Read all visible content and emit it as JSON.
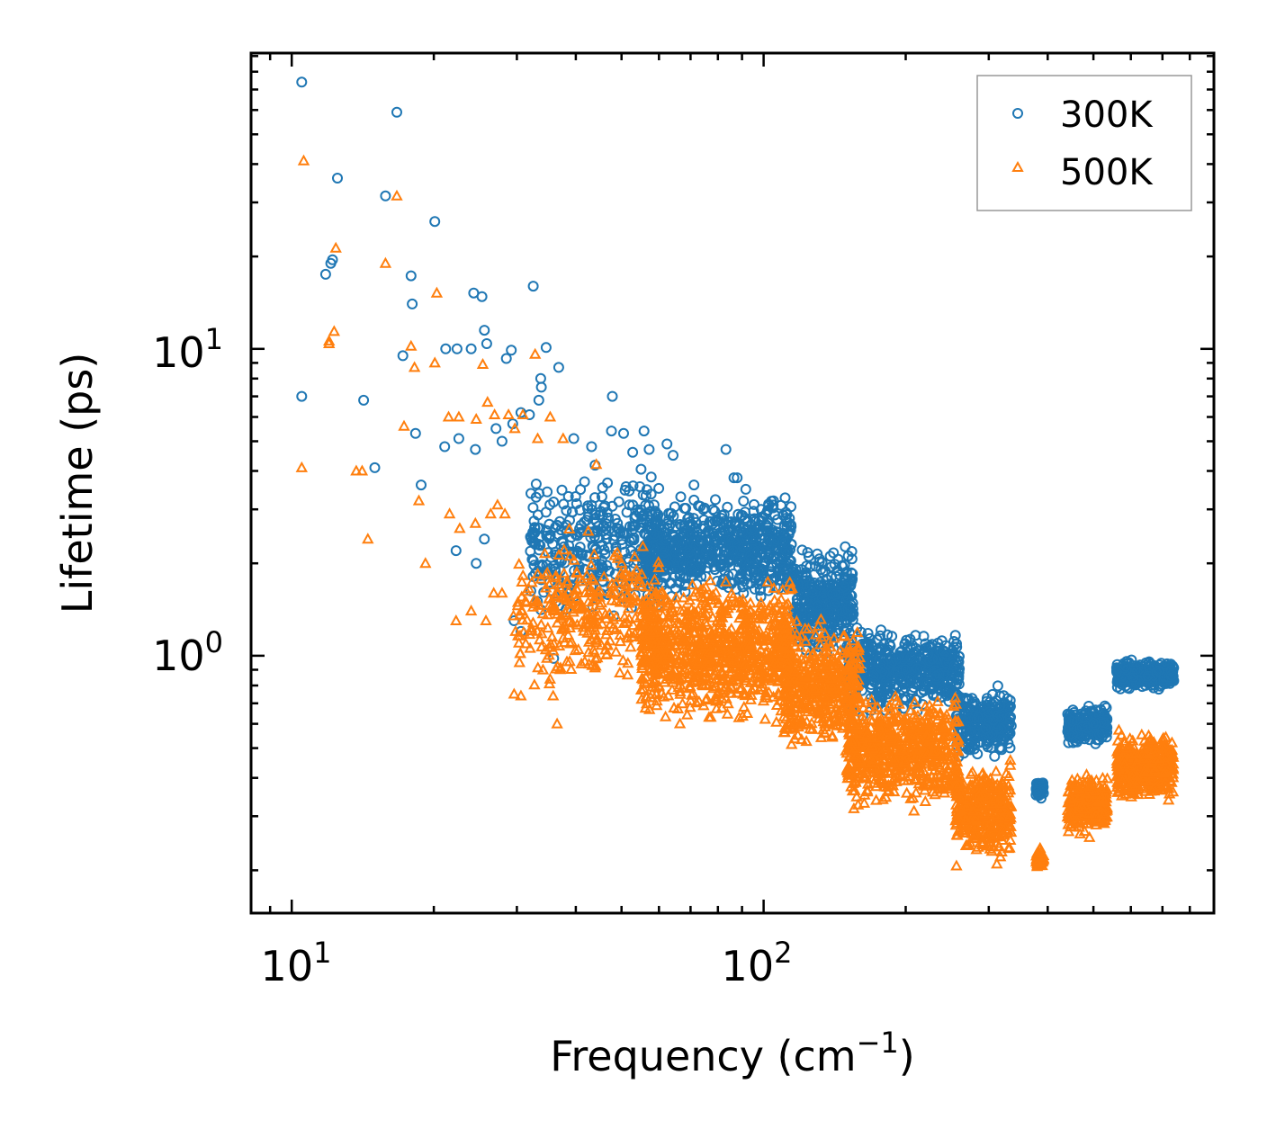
{
  "chart_data": {
    "type": "scatter",
    "title": "",
    "xlabel": "Frequency (cm",
    "xlabel_sup": "−1",
    "xlabel_close": ")",
    "ylabel": "Lifetime (ps)",
    "xscale": "log",
    "yscale": "log",
    "xlim": [
      8.2,
      900
    ],
    "ylim": [
      0.145,
      92
    ],
    "x_ticks": [
      {
        "base": "10",
        "exp": "1"
      },
      {
        "base": "10",
        "exp": "2"
      }
    ],
    "y_ticks": [
      {
        "base": "10",
        "exp": "0"
      },
      {
        "base": "10",
        "exp": "1"
      }
    ],
    "legend_position": "top-right",
    "series": [
      {
        "name": "300K",
        "color": "#1f77b4",
        "marker": "circle",
        "outliers": [
          [
            10.5,
            74
          ],
          [
            16.7,
            59
          ],
          [
            12.5,
            36
          ],
          [
            15.8,
            31.5
          ],
          [
            20.1,
            26
          ],
          [
            11.8,
            17.5
          ],
          [
            12.1,
            19.0
          ],
          [
            17.9,
            17.3
          ],
          [
            18.0,
            14.0
          ],
          [
            24.3,
            15.2
          ],
          [
            32.5,
            16.0
          ],
          [
            25.3,
            14.8
          ],
          [
            25.6,
            11.5
          ],
          [
            25.9,
            10.4
          ],
          [
            21.2,
            10.0
          ],
          [
            22.4,
            10.0
          ],
          [
            24.0,
            10.0
          ],
          [
            29.2,
            9.9
          ],
          [
            34.6,
            10.1
          ],
          [
            17.2,
            9.5
          ],
          [
            28.5,
            9.3
          ],
          [
            36.8,
            8.7
          ],
          [
            33.7,
            8.0
          ],
          [
            10.5,
            7.0
          ],
          [
            14.2,
            6.8
          ],
          [
            30.6,
            6.2
          ],
          [
            33.8,
            7.5
          ],
          [
            47.8,
            7.0
          ],
          [
            33.4,
            6.8
          ],
          [
            31.9,
            6.1
          ],
          [
            27.1,
            5.5
          ],
          [
            29.4,
            5.7
          ],
          [
            18.3,
            5.3
          ],
          [
            22.6,
            5.1
          ],
          [
            21.1,
            4.8
          ],
          [
            24.5,
            4.7
          ],
          [
            27.9,
            5.0
          ],
          [
            39.6,
            5.1
          ],
          [
            43.2,
            4.8
          ],
          [
            47.6,
            5.4
          ],
          [
            50.5,
            5.3
          ],
          [
            52.8,
            4.6
          ],
          [
            55.8,
            5.4
          ],
          [
            57.2,
            4.7
          ],
          [
            62.4,
            4.9
          ],
          [
            64.3,
            4.5
          ],
          [
            71.2,
            3.6
          ],
          [
            83.2,
            4.7
          ],
          [
            86.5,
            3.8
          ],
          [
            87.9,
            3.8
          ],
          [
            15.0,
            4.1
          ],
          [
            18.8,
            3.6
          ],
          [
            22.3,
            2.2
          ],
          [
            24.6,
            2.0
          ],
          [
            25.6,
            2.4
          ],
          [
            29.6,
            1.3
          ],
          [
            30.6,
            1.2
          ],
          [
            35.9,
            0.98
          ],
          [
            12.2,
            19.5
          ]
        ],
        "clusters": [
          {
            "x_range": [
              32,
              60
            ],
            "y_range": [
              1.2,
              4.5
            ],
            "count": 320
          },
          {
            "x_range": [
              55,
              115
            ],
            "y_range": [
              1.4,
              3.6
            ],
            "count": 700
          },
          {
            "x_range": [
              115,
              155
            ],
            "y_range": [
              0.9,
              2.4
            ],
            "count": 380
          },
          {
            "x_range": [
              150,
              260
            ],
            "y_range": [
              0.62,
              1.3
            ],
            "count": 500
          },
          {
            "x_range": [
              255,
              335
            ],
            "y_range": [
              0.44,
              0.82
            ],
            "count": 260
          },
          {
            "x_range": [
              378,
              392
            ],
            "y_range": [
              0.34,
              0.4
            ],
            "count": 50
          },
          {
            "x_range": [
              440,
              535
            ],
            "y_range": [
              0.5,
              0.7
            ],
            "count": 220
          },
          {
            "x_range": [
              560,
              740
            ],
            "y_range": [
              0.76,
              0.98
            ],
            "count": 360
          }
        ]
      },
      {
        "name": "500K",
        "color": "#ff7f0e",
        "marker": "triangle",
        "outliers": [
          [
            10.6,
            41
          ],
          [
            16.7,
            31.5
          ],
          [
            12.4,
            21.3
          ],
          [
            15.8,
            19.0
          ],
          [
            20.3,
            15.2
          ],
          [
            12.3,
            11.4
          ],
          [
            12.0,
            10.4
          ],
          [
            17.9,
            10.2
          ],
          [
            18.2,
            8.7
          ],
          [
            20.1,
            9.0
          ],
          [
            25.4,
            8.9
          ],
          [
            32.8,
            9.6
          ],
          [
            26.0,
            6.7
          ],
          [
            26.9,
            6.1
          ],
          [
            21.5,
            6.0
          ],
          [
            22.6,
            6.0
          ],
          [
            24.6,
            5.9
          ],
          [
            28.8,
            6.1
          ],
          [
            30.9,
            6.1
          ],
          [
            35.3,
            6.0
          ],
          [
            17.3,
            5.6
          ],
          [
            29.7,
            5.5
          ],
          [
            33.2,
            5.1
          ],
          [
            37.6,
            5.1
          ],
          [
            10.5,
            4.1
          ],
          [
            14.1,
            4.0
          ],
          [
            14.5,
            2.4
          ],
          [
            18.6,
            3.2
          ],
          [
            19.2,
            2.0
          ],
          [
            21.6,
            2.9
          ],
          [
            22.7,
            2.6
          ],
          [
            24.5,
            2.7
          ],
          [
            26.4,
            2.9
          ],
          [
            27.3,
            3.1
          ],
          [
            28.3,
            2.9
          ],
          [
            22.3,
            1.3
          ],
          [
            24.0,
            1.4
          ],
          [
            25.8,
            1.3
          ],
          [
            26.8,
            1.6
          ],
          [
            27.9,
            1.6
          ],
          [
            29.5,
            1.35
          ],
          [
            29.8,
            1.2
          ],
          [
            33.2,
            1.5
          ],
          [
            35.9,
            1.4
          ],
          [
            36.5,
            1.6
          ],
          [
            30.3,
            1.1
          ],
          [
            29.6,
            0.75
          ],
          [
            30.6,
            0.74
          ],
          [
            36.5,
            0.6
          ],
          [
            35.8,
            0.74
          ],
          [
            13.7,
            4.0
          ],
          [
            12.0,
            10.6
          ],
          [
            44.2,
            4.2
          ]
        ],
        "clusters": [
          {
            "x_range": [
              30,
              60
            ],
            "y_range": [
              0.7,
              2.8
            ],
            "count": 320
          },
          {
            "x_range": [
              55,
              115
            ],
            "y_range": [
              0.55,
              1.95
            ],
            "count": 900
          },
          {
            "x_range": [
              110,
              160
            ],
            "y_range": [
              0.45,
              1.4
            ],
            "count": 450
          },
          {
            "x_range": [
              150,
              260
            ],
            "y_range": [
              0.3,
              0.8
            ],
            "count": 650
          },
          {
            "x_range": [
              255,
              335
            ],
            "y_range": [
              0.2,
              0.48
            ],
            "count": 380
          },
          {
            "x_range": [
              378,
              392
            ],
            "y_range": [
              0.2,
              0.24
            ],
            "count": 50
          },
          {
            "x_range": [
              440,
              535
            ],
            "y_range": [
              0.25,
              0.42
            ],
            "count": 280
          },
          {
            "x_range": [
              560,
              740
            ],
            "y_range": [
              0.32,
              0.58
            ],
            "count": 420
          }
        ]
      }
    ]
  }
}
